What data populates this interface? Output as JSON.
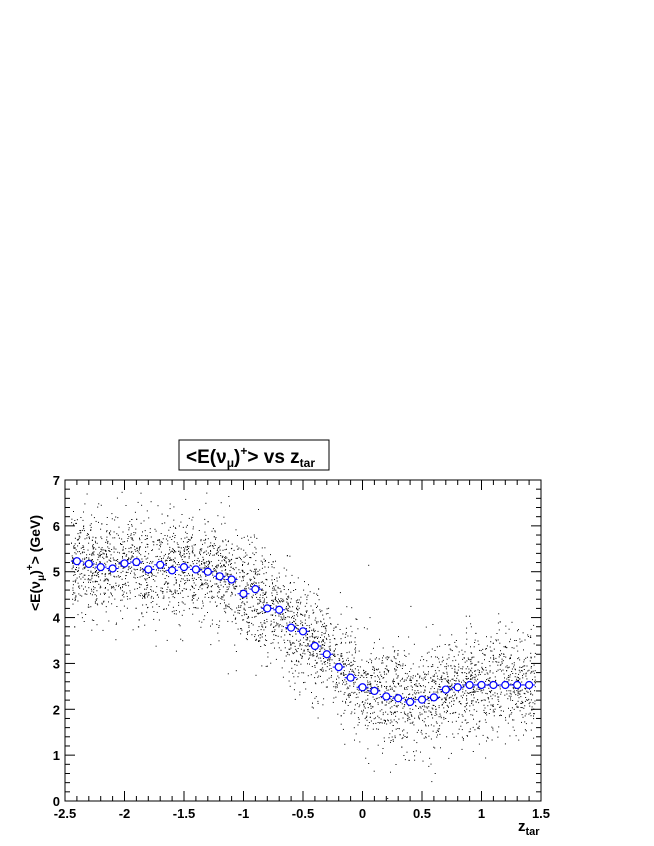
{
  "chart_data": {
    "type": "scatter",
    "title": {
      "main": "<E(",
      "nu": "ν",
      "mu": "μ",
      "close": ")",
      "plus": "+",
      "tail": "> vs z",
      "sub": "tar"
    },
    "xlabel": {
      "main": "z",
      "sub": "tar"
    },
    "ylabel": {
      "main": "<E(",
      "nu": "ν",
      "mu": "μ",
      "close": ")",
      "plus": "+",
      "tail": "> (GeV)"
    },
    "xlim": [
      -2.5,
      1.5
    ],
    "ylim": [
      0,
      7
    ],
    "x_ticks": [
      "-2.5",
      "-2",
      "-1.5",
      "-1",
      "-0.5",
      "0",
      "0.5",
      "1",
      "1.5"
    ],
    "y_ticks": [
      "0",
      "1",
      "2",
      "3",
      "4",
      "5",
      "6",
      "7"
    ],
    "series": [
      {
        "style": "profile",
        "color": "#0000ff",
        "x": [
          -2.4,
          -2.3,
          -2.2,
          -2.1,
          -2.0,
          -1.9,
          -1.8,
          -1.7,
          -1.6,
          -1.5,
          -1.4,
          -1.3,
          -1.2,
          -1.1,
          -1.0,
          -0.9,
          -0.8,
          -0.7,
          -0.6,
          -0.5,
          -0.4,
          -0.3,
          -0.2,
          -0.1,
          0.0,
          0.1,
          0.2,
          0.3,
          0.4,
          0.5,
          0.6,
          0.7,
          0.8,
          0.9,
          1.0,
          1.1,
          1.2,
          1.3,
          1.4
        ],
        "y": [
          5.23,
          5.17,
          5.1,
          5.07,
          5.18,
          5.21,
          5.05,
          5.15,
          5.03,
          5.1,
          5.05,
          5.0,
          4.9,
          4.83,
          4.52,
          4.62,
          4.2,
          4.17,
          3.78,
          3.7,
          3.38,
          3.2,
          2.92,
          2.69,
          2.48,
          2.4,
          2.28,
          2.24,
          2.16,
          2.21,
          2.26,
          2.43,
          2.48,
          2.53,
          2.53,
          2.53,
          2.53,
          2.53,
          2.53
        ],
        "xerr": 0.05,
        "yerr": 0.05
      },
      {
        "style": "scatter",
        "color": "#000000",
        "n_points": 4200,
        "description_of_trend": "y ≈ profile mean at x with spread ±0.7"
      }
    ],
    "grid": false,
    "legend": "none"
  }
}
